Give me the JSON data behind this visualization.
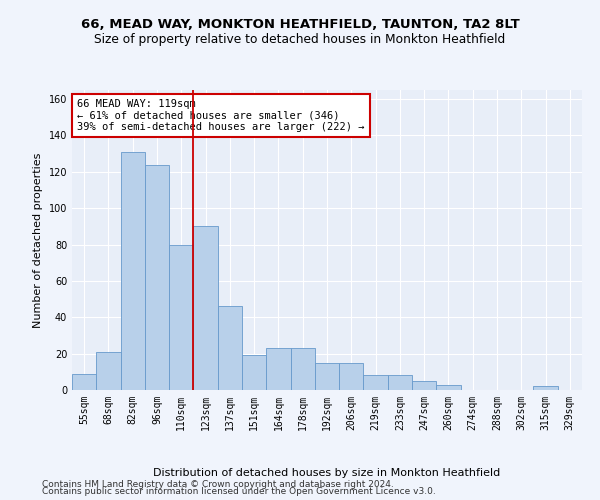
{
  "title": "66, MEAD WAY, MONKTON HEATHFIELD, TAUNTON, TA2 8LT",
  "subtitle": "Size of property relative to detached houses in Monkton Heathfield",
  "xlabel": "Distribution of detached houses by size in Monkton Heathfield",
  "ylabel": "Number of detached properties",
  "categories": [
    "55sqm",
    "68sqm",
    "82sqm",
    "96sqm",
    "110sqm",
    "123sqm",
    "137sqm",
    "151sqm",
    "164sqm",
    "178sqm",
    "192sqm",
    "206sqm",
    "219sqm",
    "233sqm",
    "247sqm",
    "260sqm",
    "274sqm",
    "288sqm",
    "302sqm",
    "315sqm",
    "329sqm"
  ],
  "values": [
    9,
    21,
    131,
    124,
    80,
    90,
    46,
    19,
    23,
    23,
    15,
    15,
    8,
    8,
    5,
    3,
    0,
    0,
    0,
    2,
    0
  ],
  "bar_color": "#b8d0ea",
  "bar_edge_color": "#6699cc",
  "vline_x": 4.5,
  "vline_color": "#cc0000",
  "annotation_text": "66 MEAD WAY: 119sqm\n← 61% of detached houses are smaller (346)\n39% of semi-detached houses are larger (222) →",
  "annotation_box_color": "#ffffff",
  "annotation_box_edgecolor": "#cc0000",
  "ylim": [
    0,
    165
  ],
  "yticks": [
    0,
    20,
    40,
    60,
    80,
    100,
    120,
    140,
    160
  ],
  "footer1": "Contains HM Land Registry data © Crown copyright and database right 2024.",
  "footer2": "Contains public sector information licensed under the Open Government Licence v3.0.",
  "bg_color": "#e8eef8",
  "fig_color": "#f0f4fc",
  "grid_color": "#ffffff",
  "title_fontsize": 9.5,
  "subtitle_fontsize": 8.8,
  "axis_label_fontsize": 8,
  "tick_fontsize": 7,
  "annotation_fontsize": 7.5,
  "footer_fontsize": 6.5
}
